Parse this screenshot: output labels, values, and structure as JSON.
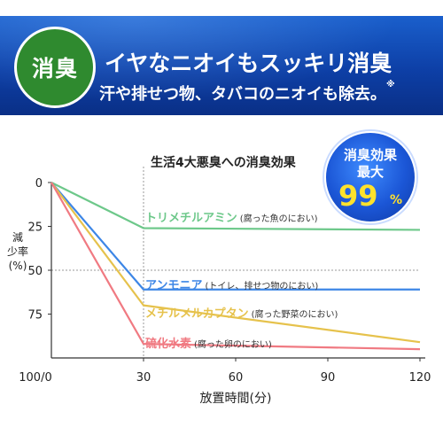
{
  "banner": {
    "badge": "消臭",
    "headline": "イヤなニオイもスッキリ消臭",
    "subline": "汗や排せつ物、タバコのニオイも除去。",
    "footnote_mark": "※"
  },
  "seal": {
    "line1": "消臭効果",
    "line2": "最大",
    "number": "99",
    "percent": "%"
  },
  "colors": {
    "banner_blue": "#0d3fa6",
    "badge_green": "#2f8a2f",
    "seal_yellow": "#ffe22c",
    "trimethylamine": "#6dc88a",
    "ammonia": "#3d86e6",
    "methylmercaptan": "#e6c24c",
    "hydrogen_sulfide": "#f07a82"
  },
  "chart_data": {
    "type": "line",
    "title": "生活4大悪臭への消臭効果",
    "xlabel": "放置時間(分)",
    "ylabel": "減少率(%)",
    "x_ticks": [
      "30",
      "60",
      "90",
      "120"
    ],
    "origin_label": "100/0",
    "y_ticks": [
      "0",
      "25",
      "50",
      "75"
    ],
    "xlim": [
      0,
      120
    ],
    "ylim": [
      0,
      100
    ],
    "y_inverted": true,
    "grid": "dotted lines at y=50 and x=30",
    "x": [
      0,
      30,
      120
    ],
    "series": [
      {
        "key": "trimethylamine",
        "name": "トリメチルアミン",
        "note": "(腐った魚のにおい)",
        "values": [
          0,
          26,
          27
        ]
      },
      {
        "key": "ammonia",
        "name": "アンモニア",
        "note": "(トイレ、排せつ物のにおい)",
        "values": [
          0,
          61,
          61
        ]
      },
      {
        "key": "methylmercaptan",
        "name": "メチルメルカプタン",
        "note": "(腐った野菜のにおい)",
        "values": [
          0,
          70,
          91
        ]
      },
      {
        "key": "hydrogen_sulfide",
        "name": "硫化水素",
        "note": "(腐った卵のにおい)",
        "values": [
          0,
          92,
          95
        ]
      }
    ]
  }
}
